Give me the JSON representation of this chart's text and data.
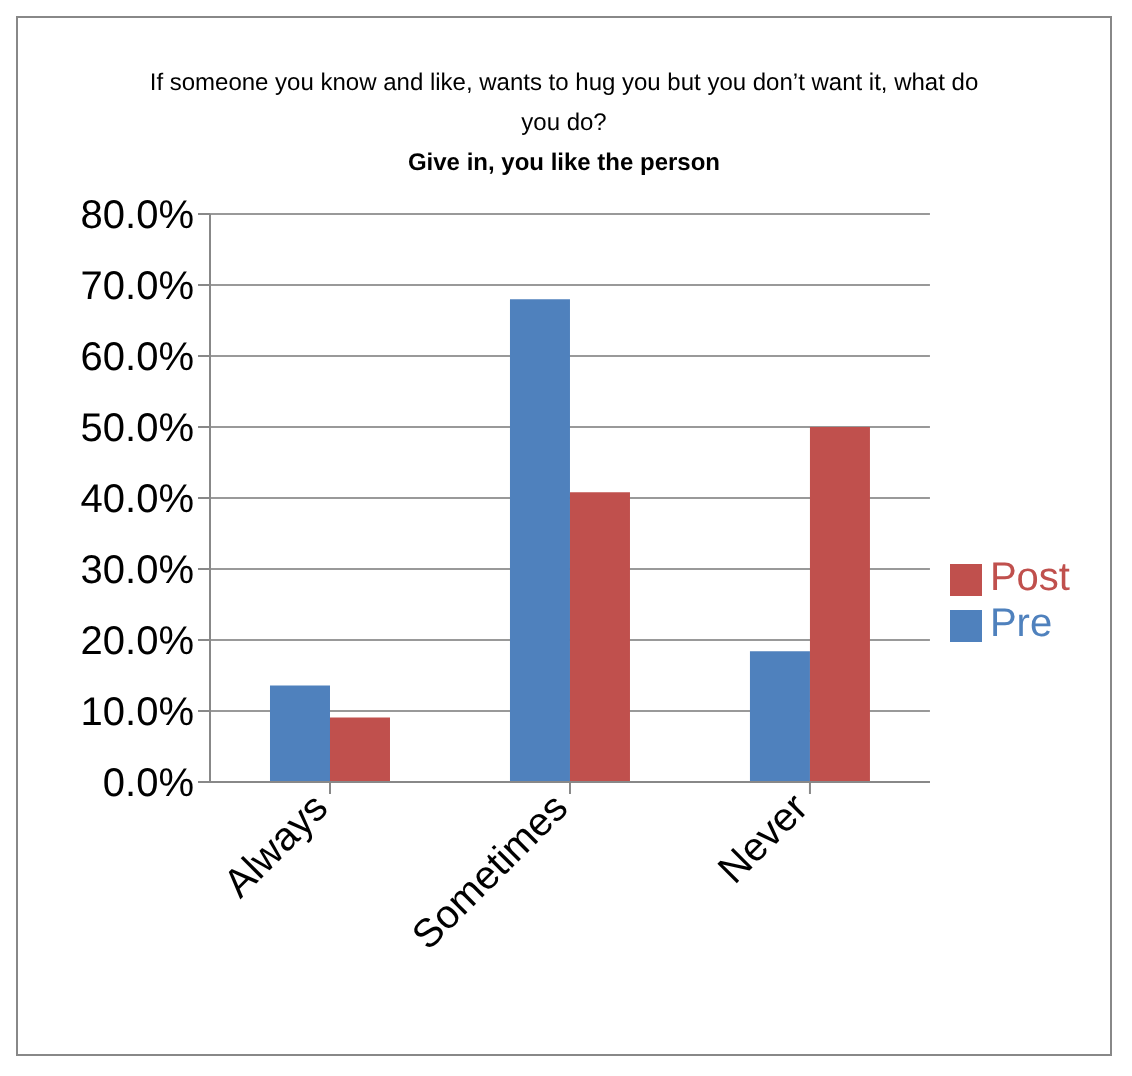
{
  "chart_data": {
    "type": "bar",
    "title": "If someone you know and like, wants to hug you but you don’t want it, what do you do?",
    "subtitle": "Give in, you like the person",
    "categories": [
      "Always",
      "Sometimes",
      "Never"
    ],
    "series": [
      {
        "name": "Pre",
        "color": "#4f81bd",
        "values": [
          13.6,
          68.0,
          18.4
        ]
      },
      {
        "name": "Post",
        "color": "#c0504d",
        "values": [
          9.1,
          40.8,
          50.0
        ]
      }
    ],
    "ylim": [
      0,
      80
    ],
    "yticks": [
      {
        "value": 0,
        "label": "0.0%"
      },
      {
        "value": 10,
        "label": "10.0%"
      },
      {
        "value": 20,
        "label": "20.0%"
      },
      {
        "value": 30,
        "label": "30.0%"
      },
      {
        "value": 40,
        "label": "40.0%"
      },
      {
        "value": 50,
        "label": "50.0%"
      },
      {
        "value": 60,
        "label": "60.0%"
      },
      {
        "value": 70,
        "label": "70.0%"
      },
      {
        "value": 80,
        "label": "80.0%"
      }
    ],
    "grid": "y",
    "legend": "right"
  }
}
